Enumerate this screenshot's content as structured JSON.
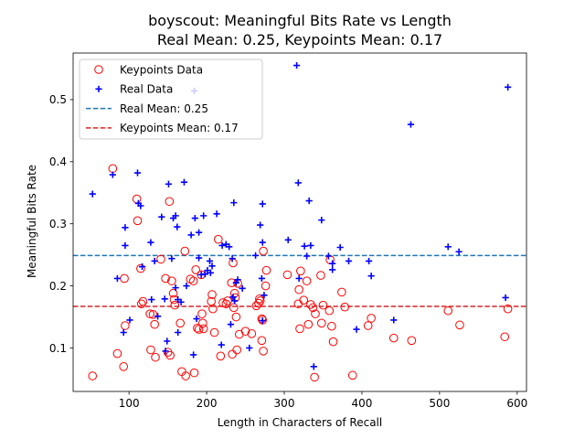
{
  "chart_data": {
    "type": "scatter",
    "title_line1": "boyscout: Meaningful Bits Rate vs Length",
    "title_line2": "Real Mean: 0.25, Keypoints Mean: 0.17",
    "xlabel": "Length in Characters of Recall",
    "ylabel": "Meaningful Bits Rate",
    "xlim": [
      28,
      612
    ],
    "ylim": [
      0.03,
      0.575
    ],
    "xticks": [
      100,
      200,
      300,
      400,
      500,
      600
    ],
    "yticks": [
      0.1,
      0.2,
      0.3,
      0.4,
      0.5
    ],
    "ytick_labels": [
      "0.1",
      "0.2",
      "0.3",
      "0.4",
      "0.5"
    ],
    "grid": false,
    "legend_position": "upper-left",
    "series": [
      {
        "name": "Keypoints Data",
        "marker": "circle-open",
        "color": "#ff0000",
        "points": [
          [
            53,
            0.055
          ],
          [
            79,
            0.389
          ],
          [
            85,
            0.091
          ],
          [
            93,
            0.07
          ],
          [
            94,
            0.212
          ],
          [
            95,
            0.136
          ],
          [
            110,
            0.34
          ],
          [
            111,
            0.305
          ],
          [
            115,
            0.228
          ],
          [
            116,
            0.171
          ],
          [
            118,
            0.175
          ],
          [
            127,
            0.155
          ],
          [
            128,
            0.097
          ],
          [
            131,
            0.154
          ],
          [
            133,
            0.138
          ],
          [
            134,
            0.085
          ],
          [
            141,
            0.243
          ],
          [
            147,
            0.212
          ],
          [
            150,
            0.093
          ],
          [
            152,
            0.336
          ],
          [
            153,
            0.088
          ],
          [
            155,
            0.208
          ],
          [
            157,
            0.188
          ],
          [
            158,
            0.178
          ],
          [
            159,
            0.169
          ],
          [
            166,
            0.14
          ],
          [
            168,
            0.062
          ],
          [
            172,
            0.256
          ],
          [
            173,
            0.055
          ],
          [
            179,
            0.211
          ],
          [
            183,
            0.208
          ],
          [
            184,
            0.06
          ],
          [
            186,
            0.226
          ],
          [
            188,
            0.132
          ],
          [
            190,
            0.13
          ],
          [
            193,
            0.218
          ],
          [
            194,
            0.155
          ],
          [
            195,
            0.14
          ],
          [
            196,
            0.131
          ],
          [
            206,
            0.175
          ],
          [
            207,
            0.186
          ],
          [
            208,
            0.163
          ],
          [
            210,
            0.125
          ],
          [
            215,
            0.275
          ],
          [
            218,
            0.087
          ],
          [
            221,
            0.173
          ],
          [
            225,
            0.171
          ],
          [
            227,
            0.176
          ],
          [
            232,
            0.205
          ],
          [
            233,
            0.09
          ],
          [
            234,
            0.237
          ],
          [
            235,
            0.165
          ],
          [
            236,
            0.188
          ],
          [
            237,
            0.181
          ],
          [
            238,
            0.15
          ],
          [
            239,
            0.097
          ],
          [
            240,
            0.204
          ],
          [
            242,
            0.122
          ],
          [
            250,
            0.127
          ],
          [
            258,
            0.123
          ],
          [
            264,
            0.168
          ],
          [
            267,
            0.172
          ],
          [
            268,
            0.179
          ],
          [
            269,
            0.176
          ],
          [
            271,
            0.112
          ],
          [
            271,
            0.147
          ],
          [
            272,
            0.145
          ],
          [
            273,
            0.095
          ],
          [
            273,
            0.256
          ],
          [
            276,
            0.2
          ],
          [
            277,
            0.225
          ],
          [
            304,
            0.218
          ],
          [
            318,
            0.171
          ],
          [
            319,
            0.194
          ],
          [
            320,
            0.131
          ],
          [
            321,
            0.224
          ],
          [
            325,
            0.177
          ],
          [
            329,
            0.208
          ],
          [
            331,
            0.138
          ],
          [
            334,
            0.17
          ],
          [
            337,
            0.165
          ],
          [
            339,
            0.053
          ],
          [
            340,
            0.155
          ],
          [
            347,
            0.217
          ],
          [
            348,
            0.14
          ],
          [
            350,
            0.169
          ],
          [
            358,
            0.16
          ],
          [
            359,
            0.242
          ],
          [
            361,
            0.135
          ],
          [
            363,
            0.11
          ],
          [
            374,
            0.19
          ],
          [
            378,
            0.166
          ],
          [
            388,
            0.056
          ],
          [
            408,
            0.136
          ],
          [
            412,
            0.148
          ],
          [
            441,
            0.116
          ],
          [
            464,
            0.112
          ],
          [
            511,
            0.16
          ],
          [
            526,
            0.137
          ],
          [
            584,
            0.118
          ],
          [
            588,
            0.163
          ]
        ]
      },
      {
        "name": "Real Data",
        "marker": "plus",
        "color": "#0000ff",
        "points": [
          [
            53,
            0.348
          ],
          [
            79,
            0.379
          ],
          [
            85,
            0.212
          ],
          [
            93,
            0.125
          ],
          [
            95,
            0.294
          ],
          [
            95,
            0.265
          ],
          [
            101,
            0.145
          ],
          [
            111,
            0.382
          ],
          [
            112,
            0.333
          ],
          [
            115,
            0.329
          ],
          [
            117,
            0.231
          ],
          [
            128,
            0.27
          ],
          [
            129,
            0.178
          ],
          [
            133,
            0.24
          ],
          [
            137,
            0.151
          ],
          [
            142,
            0.311
          ],
          [
            146,
            0.179
          ],
          [
            147,
            0.095
          ],
          [
            149,
            0.111
          ],
          [
            151,
            0.364
          ],
          [
            155,
            0.244
          ],
          [
            157,
            0.309
          ],
          [
            160,
            0.313
          ],
          [
            160,
            0.197
          ],
          [
            162,
            0.295
          ],
          [
            163,
            0.178
          ],
          [
            163,
            0.125
          ],
          [
            167,
            0.174
          ],
          [
            171,
            0.367
          ],
          [
            174,
            0.2
          ],
          [
            180,
            0.282
          ],
          [
            183,
            0.089
          ],
          [
            184,
            0.514
          ],
          [
            185,
            0.309
          ],
          [
            187,
            0.147
          ],
          [
            190,
            0.286
          ],
          [
            190,
            0.245
          ],
          [
            193,
            0.218
          ],
          [
            196,
            0.313
          ],
          [
            198,
            0.219
          ],
          [
            201,
            0.225
          ],
          [
            204,
            0.24
          ],
          [
            205,
            0.221
          ],
          [
            207,
            0.232
          ],
          [
            213,
            0.316
          ],
          [
            219,
            0.105
          ],
          [
            220,
            0.265
          ],
          [
            225,
            0.267
          ],
          [
            229,
            0.263
          ],
          [
            231,
            0.138
          ],
          [
            233,
            0.244
          ],
          [
            234,
            0.182
          ],
          [
            235,
            0.334
          ],
          [
            236,
            0.176
          ],
          [
            238,
            0.205
          ],
          [
            240,
            0.21
          ],
          [
            246,
            0.196
          ],
          [
            255,
            0.1
          ],
          [
            263,
            0.249
          ],
          [
            269,
            0.298
          ],
          [
            271,
            0.212
          ],
          [
            272,
            0.332
          ],
          [
            272,
            0.27
          ],
          [
            272,
            0.144
          ],
          [
            274,
            0.185
          ],
          [
            305,
            0.274
          ],
          [
            316,
            0.555
          ],
          [
            318,
            0.366
          ],
          [
            319,
            0.212
          ],
          [
            326,
            0.264
          ],
          [
            329,
            0.248
          ],
          [
            332,
            0.337
          ],
          [
            334,
            0.265
          ],
          [
            338,
            0.07
          ],
          [
            348,
            0.306
          ],
          [
            357,
            0.248
          ],
          [
            362,
            0.236
          ],
          [
            362,
            0.226
          ],
          [
            372,
            0.262
          ],
          [
            383,
            0.24
          ],
          [
            393,
            0.13
          ],
          [
            409,
            0.24
          ],
          [
            412,
            0.216
          ],
          [
            441,
            0.145
          ],
          [
            463,
            0.46
          ],
          [
            511,
            0.263
          ],
          [
            525,
            0.255
          ],
          [
            585,
            0.181
          ],
          [
            588,
            0.52
          ]
        ]
      }
    ],
    "mean_lines": [
      {
        "name": "Real Mean: 0.25",
        "value": 0.249,
        "color": "#1f77b4",
        "style": "dashed"
      },
      {
        "name": "Keypoints Mean: 0.17",
        "value": 0.167,
        "color": "#d62728",
        "style": "dashed"
      }
    ]
  }
}
